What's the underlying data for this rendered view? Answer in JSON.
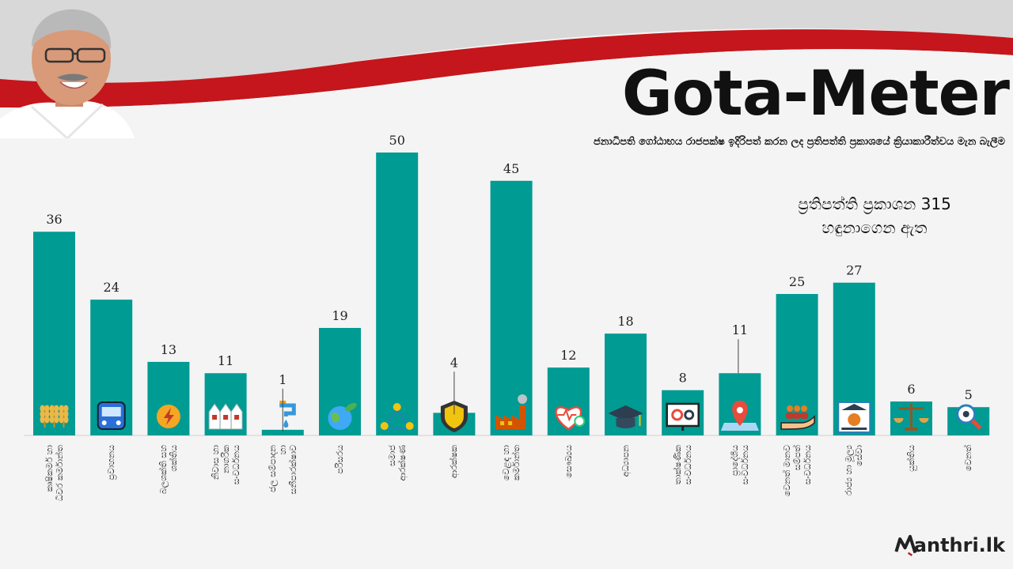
{
  "header": {
    "title": "Gota-Meter",
    "subtitle": "ජනාධිපති ගෝඨාභය රාජපක්ෂ ඉදිරිපත් කරන ලද ප්‍රතිපත්ති ප්‍රකාශයේ ක්‍රියාකාරීත්වය මැන බැලීම",
    "note_line1": "ප්‍රතිපත්ති ප්‍රකාශන 315",
    "note_line2": "හඳුනාගෙන ඇත"
  },
  "colors": {
    "bar": "#009b93",
    "accent": "#c4161c",
    "band": "#dcdcdc"
  },
  "chart_data": {
    "type": "bar",
    "categories": [
      "කෘෂිකර්ම හා\nධීවර කර්මාන්ත",
      "ප්‍රවාහනය",
      "බලශක්ති සහ\nශක්තිය",
      "නිවාස හා\nනාගරික\nසංවර්ධනය",
      "ජල සම්පාදන\nහා\nසනීපාරක්ෂාව",
      "පරිසරය",
      "සමාජ\nආරක්ෂණ",
      "ආරක්ෂක",
      "වෙළඳ හා\nකර්මාන්ත",
      "සෞඛ්‍යය",
      "අධ්‍යාපන",
      "තාක්ෂණික\nසංවර්ධනය",
      "ප්‍රාදේශීය\nසංවර්ධනය",
      "වෙනත් මානව\nසම්පත්\nසංවර්ධනය",
      "රාජ්‍ය හා මූල්‍ය\nසේවා",
      "යුක්තිය",
      "වෙනත්"
    ],
    "icons": [
      "wheat-icon",
      "bus-icon",
      "lightning-icon",
      "houses-icon",
      "tap-icon",
      "globe-icon",
      "people-icon",
      "shield-icon",
      "factory-icon",
      "heart-icon",
      "graduation-cap-icon",
      "gears-monitor-icon",
      "map-pin-icon",
      "hand-people-icon",
      "bank-icon",
      "scales-icon",
      "magnifier-icon"
    ],
    "values": [
      36,
      24,
      13,
      11,
      1,
      19,
      50,
      4,
      45,
      12,
      18,
      8,
      11,
      25,
      27,
      6,
      5
    ],
    "ylim": [
      0,
      50
    ]
  },
  "logo": {
    "text": "anthri.lk"
  }
}
